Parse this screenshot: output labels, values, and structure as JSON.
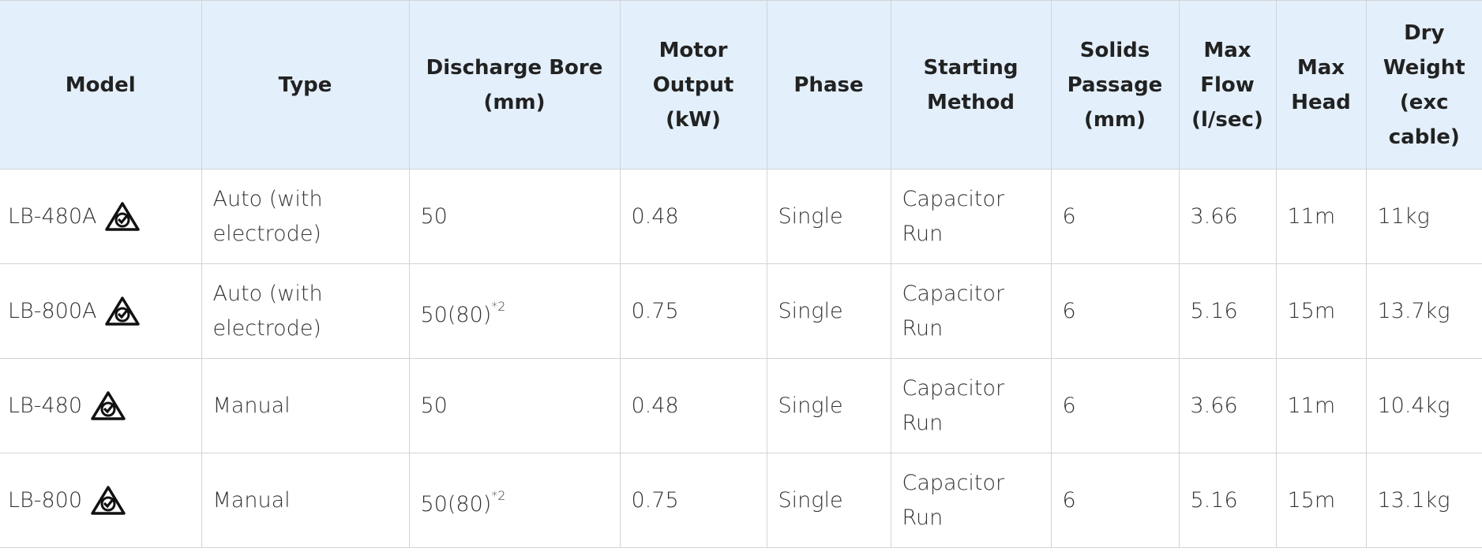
{
  "table": {
    "headers": [
      "Model",
      "Type",
      "Discharge Bore (mm)",
      "Motor Output (kW)",
      "Phase",
      "Starting Method",
      "Solids Passage (mm)",
      "Max Flow (l/sec)",
      "Max Head",
      "Dry Weight (exc cable)"
    ],
    "rows": [
      {
        "model": "LB-480A",
        "type": "Auto (with electrode)",
        "discharge": "50",
        "motor": "0.48",
        "phase": "Single",
        "starting": "Capacitor Run",
        "solids": "6",
        "flow": "3.66",
        "head": "11m",
        "weight": "11kg"
      },
      {
        "model": "LB-800A",
        "type": "Auto (with electrode)",
        "discharge": "50(80)",
        "discharge_note": "*2",
        "motor": "0.75",
        "phase": "Single",
        "starting": "Capacitor Run",
        "solids": "6",
        "flow": "5.16",
        "head": "15m",
        "weight": "13.7kg"
      },
      {
        "model": "LB-480",
        "type": "Manual",
        "discharge": "50",
        "motor": "0.48",
        "phase": "Single",
        "starting": "Capacitor Run",
        "solids": "6",
        "flow": "3.66",
        "head": "11m",
        "weight": "10.4kg"
      },
      {
        "model": "LB-800",
        "type": "Manual",
        "discharge": "50(80)",
        "discharge_note": "*2",
        "motor": "0.75",
        "phase": "Single",
        "starting": "Capacitor Run",
        "solids": "6",
        "flow": "5.16",
        "head": "15m",
        "weight": "13.1kg"
      }
    ]
  }
}
